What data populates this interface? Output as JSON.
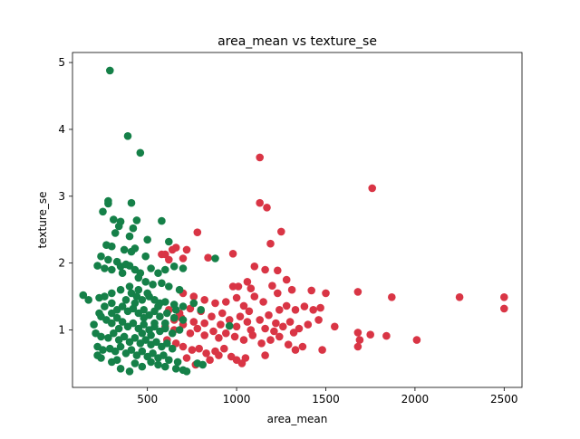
{
  "chart_data": {
    "type": "scatter",
    "title": "area_mean vs texture_se",
    "xlabel": "area_mean",
    "ylabel": "texture_se",
    "xlim": [
      80,
      2600
    ],
    "ylim": [
      0.14,
      5.15
    ],
    "xticks": [
      500,
      1000,
      1500,
      2000,
      2500
    ],
    "yticks": [
      1,
      2,
      3,
      4,
      5
    ],
    "grid": false,
    "legend": "none",
    "series": [
      {
        "color": "#d93545",
        "points": [
          [
            1130,
            3.58
          ],
          [
            1760,
            3.12
          ],
          [
            1130,
            2.9
          ],
          [
            1170,
            2.83
          ],
          [
            1250,
            2.47
          ],
          [
            780,
            2.46
          ],
          [
            1190,
            2.29
          ],
          [
            660,
            2.23
          ],
          [
            640,
            2.2
          ],
          [
            980,
            2.14
          ],
          [
            600,
            2.13
          ],
          [
            580,
            2.13
          ],
          [
            720,
            2.2
          ],
          [
            840,
            2.08
          ],
          [
            700,
            2.07
          ],
          [
            620,
            2.05
          ],
          [
            1100,
            1.95
          ],
          [
            1160,
            1.9
          ],
          [
            1230,
            1.89
          ],
          [
            1280,
            1.75
          ],
          [
            1060,
            1.72
          ],
          [
            980,
            1.65
          ],
          [
            1010,
            1.65
          ],
          [
            1080,
            1.62
          ],
          [
            1200,
            1.66
          ],
          [
            1310,
            1.6
          ],
          [
            1420,
            1.59
          ],
          [
            1500,
            1.55
          ],
          [
            1680,
            1.57
          ],
          [
            1870,
            1.49
          ],
          [
            2250,
            1.49
          ],
          [
            2500,
            1.49
          ],
          [
            2500,
            1.32
          ],
          [
            700,
            1.55
          ],
          [
            760,
            1.5
          ],
          [
            820,
            1.45
          ],
          [
            880,
            1.4
          ],
          [
            940,
            1.42
          ],
          [
            1000,
            1.48
          ],
          [
            1040,
            1.36
          ],
          [
            1100,
            1.5
          ],
          [
            1150,
            1.42
          ],
          [
            1230,
            1.55
          ],
          [
            1280,
            1.36
          ],
          [
            1330,
            1.3
          ],
          [
            1380,
            1.35
          ],
          [
            1430,
            1.3
          ],
          [
            1470,
            1.33
          ],
          [
            620,
            1.3
          ],
          [
            680,
            1.25
          ],
          [
            740,
            1.32
          ],
          [
            800,
            1.28
          ],
          [
            860,
            1.2
          ],
          [
            920,
            1.25
          ],
          [
            960,
            1.15
          ],
          [
            1020,
            1.2
          ],
          [
            1070,
            1.28
          ],
          [
            1130,
            1.15
          ],
          [
            1180,
            1.22
          ],
          [
            1220,
            1.1
          ],
          [
            1260,
            1.05
          ],
          [
            1300,
            1.12
          ],
          [
            1350,
            1.02
          ],
          [
            1400,
            1.08
          ],
          [
            1460,
            1.15
          ],
          [
            1550,
            1.05
          ],
          [
            1680,
            0.96
          ],
          [
            1750,
            0.93
          ],
          [
            1840,
            0.91
          ],
          [
            2010,
            0.85
          ],
          [
            600,
            1.05
          ],
          [
            650,
            1.0
          ],
          [
            700,
            1.08
          ],
          [
            740,
            0.95
          ],
          [
            780,
            1.02
          ],
          [
            820,
            0.92
          ],
          [
            870,
            0.98
          ],
          [
            900,
            0.88
          ],
          [
            940,
            0.95
          ],
          [
            990,
            0.9
          ],
          [
            1040,
            0.85
          ],
          [
            1090,
            0.92
          ],
          [
            1140,
            0.8
          ],
          [
            1190,
            0.85
          ],
          [
            1240,
            0.9
          ],
          [
            1290,
            0.78
          ],
          [
            1330,
            0.7
          ],
          [
            1370,
            0.75
          ],
          [
            1480,
            0.7
          ],
          [
            1680,
            0.75
          ],
          [
            1690,
            0.85
          ],
          [
            610,
            0.85
          ],
          [
            660,
            0.8
          ],
          [
            700,
            0.75
          ],
          [
            750,
            0.7
          ],
          [
            790,
            0.72
          ],
          [
            830,
            0.65
          ],
          [
            880,
            0.68
          ],
          [
            930,
            0.72
          ],
          [
            970,
            0.6
          ],
          [
            1000,
            0.55
          ],
          [
            1030,
            0.5
          ],
          [
            1050,
            0.58
          ],
          [
            1160,
            0.62
          ],
          [
            720,
            0.58
          ],
          [
            770,
            0.48
          ],
          [
            850,
            0.55
          ],
          [
            900,
            0.62
          ],
          [
            1000,
            1.05
          ],
          [
            1080,
            1.0
          ],
          [
            1160,
            1.02
          ],
          [
            1210,
            0.98
          ],
          [
            1320,
            0.96
          ],
          [
            1240,
            1.3
          ],
          [
            820,
            1.1
          ],
          [
            760,
            1.12
          ],
          [
            690,
            1.18
          ],
          [
            650,
            1.15
          ],
          [
            910,
            1.08
          ],
          [
            1060,
            1.12
          ]
        ]
      },
      {
        "color": "#158048",
        "points": [
          [
            290,
            4.88
          ],
          [
            390,
            3.9
          ],
          [
            460,
            3.65
          ],
          [
            280,
            2.93
          ],
          [
            280,
            2.89
          ],
          [
            410,
            2.9
          ],
          [
            250,
            2.77
          ],
          [
            310,
            2.65
          ],
          [
            350,
            2.62
          ],
          [
            440,
            2.64
          ],
          [
            580,
            2.63
          ],
          [
            340,
            2.55
          ],
          [
            420,
            2.52
          ],
          [
            320,
            2.45
          ],
          [
            400,
            2.4
          ],
          [
            620,
            2.32
          ],
          [
            500,
            2.35
          ],
          [
            270,
            2.27
          ],
          [
            300,
            2.25
          ],
          [
            370,
            2.2
          ],
          [
            430,
            2.22
          ],
          [
            410,
            2.17
          ],
          [
            490,
            2.1
          ],
          [
            240,
            2.1
          ],
          [
            280,
            2.05
          ],
          [
            330,
            2.02
          ],
          [
            220,
            1.96
          ],
          [
            260,
            1.92
          ],
          [
            300,
            1.9
          ],
          [
            350,
            1.95
          ],
          [
            380,
            1.98
          ],
          [
            400,
            1.96
          ],
          [
            430,
            1.9
          ],
          [
            460,
            1.85
          ],
          [
            520,
            1.92
          ],
          [
            560,
            1.85
          ],
          [
            600,
            1.9
          ],
          [
            650,
            1.95
          ],
          [
            700,
            1.92
          ],
          [
            880,
            2.07
          ],
          [
            360,
            1.85
          ],
          [
            450,
            1.78
          ],
          [
            490,
            1.72
          ],
          [
            530,
            1.68
          ],
          [
            580,
            1.7
          ],
          [
            620,
            1.65
          ],
          [
            680,
            1.6
          ],
          [
            400,
            1.65
          ],
          [
            350,
            1.6
          ],
          [
            300,
            1.55
          ],
          [
            260,
            1.5
          ],
          [
            230,
            1.48
          ],
          [
            140,
            1.52
          ],
          [
            170,
            1.45
          ],
          [
            410,
            1.55
          ],
          [
            440,
            1.5
          ],
          [
            470,
            1.45
          ],
          [
            510,
            1.5
          ],
          [
            540,
            1.45
          ],
          [
            570,
            1.4
          ],
          [
            600,
            1.42
          ],
          [
            650,
            1.38
          ],
          [
            700,
            1.35
          ],
          [
            760,
            1.4
          ],
          [
            800,
            1.3
          ],
          [
            260,
            1.35
          ],
          [
            300,
            1.4
          ],
          [
            330,
            1.3
          ],
          [
            360,
            1.35
          ],
          [
            390,
            1.28
          ],
          [
            420,
            1.32
          ],
          [
            450,
            1.25
          ],
          [
            480,
            1.3
          ],
          [
            510,
            1.22
          ],
          [
            540,
            1.28
          ],
          [
            570,
            1.2
          ],
          [
            610,
            1.25
          ],
          [
            650,
            1.18
          ],
          [
            700,
            1.15
          ],
          [
            240,
            1.2
          ],
          [
            270,
            1.15
          ],
          [
            300,
            1.1
          ],
          [
            330,
            1.18
          ],
          [
            360,
            1.12
          ],
          [
            390,
            1.05
          ],
          [
            420,
            1.1
          ],
          [
            450,
            1.02
          ],
          [
            480,
            1.08
          ],
          [
            510,
            1.0
          ],
          [
            540,
            1.05
          ],
          [
            570,
            0.98
          ],
          [
            600,
            1.02
          ],
          [
            640,
            0.95
          ],
          [
            680,
            1.0
          ],
          [
            960,
            1.06
          ],
          [
            210,
            0.95
          ],
          [
            240,
            0.9
          ],
          [
            280,
            0.88
          ],
          [
            310,
            0.95
          ],
          [
            340,
            0.85
          ],
          [
            370,
            0.9
          ],
          [
            400,
            0.82
          ],
          [
            430,
            0.88
          ],
          [
            460,
            0.8
          ],
          [
            490,
            0.85
          ],
          [
            520,
            0.78
          ],
          [
            550,
            0.82
          ],
          [
            580,
            0.75
          ],
          [
            610,
            0.8
          ],
          [
            640,
            0.72
          ],
          [
            220,
            0.75
          ],
          [
            250,
            0.7
          ],
          [
            290,
            0.72
          ],
          [
            320,
            0.68
          ],
          [
            350,
            0.75
          ],
          [
            380,
            0.65
          ],
          [
            410,
            0.7
          ],
          [
            440,
            0.62
          ],
          [
            470,
            0.68
          ],
          [
            500,
            0.6
          ],
          [
            530,
            0.65
          ],
          [
            560,
            0.58
          ],
          [
            590,
            0.62
          ],
          [
            620,
            0.55
          ],
          [
            670,
            0.52
          ],
          [
            220,
            0.62
          ],
          [
            240,
            0.58
          ],
          [
            300,
            0.52
          ],
          [
            330,
            0.55
          ],
          [
            350,
            0.42
          ],
          [
            400,
            0.38
          ],
          [
            430,
            0.5
          ],
          [
            470,
            0.45
          ],
          [
            520,
            0.52
          ],
          [
            560,
            0.48
          ],
          [
            600,
            0.45
          ],
          [
            660,
            0.42
          ],
          [
            700,
            0.4
          ],
          [
            720,
            0.38
          ],
          [
            780,
            0.5
          ],
          [
            810,
            0.48
          ],
          [
            200,
            1.08
          ],
          [
            230,
            1.25
          ],
          [
            450,
            1.6
          ],
          [
            500,
            1.55
          ],
          [
            540,
            1.1
          ],
          [
            470,
            0.95
          ],
          [
            430,
            1.4
          ],
          [
            380,
            1.45
          ],
          [
            600,
            1.1
          ],
          [
            660,
            1.3
          ],
          [
            300,
            1.25
          ],
          [
            340,
            1.02
          ],
          [
            520,
            0.92
          ],
          [
            560,
            1.35
          ],
          [
            480,
            1.18
          ]
        ]
      }
    ]
  }
}
